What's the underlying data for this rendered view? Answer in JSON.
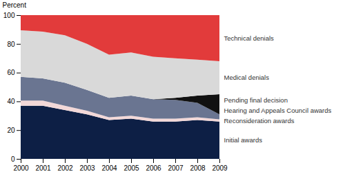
{
  "chart_data": {
    "type": "area",
    "stacked": true,
    "ylabel": "Percent",
    "x": [
      2000,
      2001,
      2002,
      2003,
      2004,
      2005,
      2006,
      2007,
      2008,
      2009
    ],
    "xlim": [
      2000,
      2009
    ],
    "xticks": [
      2000,
      2001,
      2002,
      2003,
      2004,
      2005,
      2006,
      2007,
      2008,
      2009
    ],
    "ylim": [
      0,
      100
    ],
    "yticks": [
      0,
      20,
      40,
      60,
      80,
      100
    ],
    "series": [
      {
        "name": "Initial awards",
        "color": "#0d1f45",
        "values": [
          37,
          37,
          34,
          31,
          27,
          28,
          26,
          26,
          27,
          26
        ]
      },
      {
        "name": "Reconsideration awards",
        "color": "#f2d8d8",
        "values": [
          3.5,
          3.5,
          3,
          2.5,
          2,
          2,
          2,
          2,
          2,
          1.5
        ]
      },
      {
        "name": "Hearing and Appeals Council awards",
        "color": "#6a7591",
        "values": [
          16.5,
          15.5,
          16,
          14.5,
          13.5,
          14,
          13.5,
          13,
          10,
          3.5
        ]
      },
      {
        "name": "Pending final decision",
        "color": "#111111",
        "values": [
          0,
          0,
          0,
          0,
          0,
          0,
          0,
          1.5,
          5,
          14
        ]
      },
      {
        "name": "Medical denials",
        "color": "#d9d9d9",
        "values": [
          32.5,
          32.5,
          33,
          32,
          30,
          30,
          29.5,
          27.5,
          25,
          23
        ]
      },
      {
        "name": "Technical denials",
        "color": "#e23b3b",
        "values": [
          10.5,
          11.5,
          14,
          20,
          27.5,
          26,
          29,
          30,
          31,
          32
        ]
      }
    ]
  }
}
